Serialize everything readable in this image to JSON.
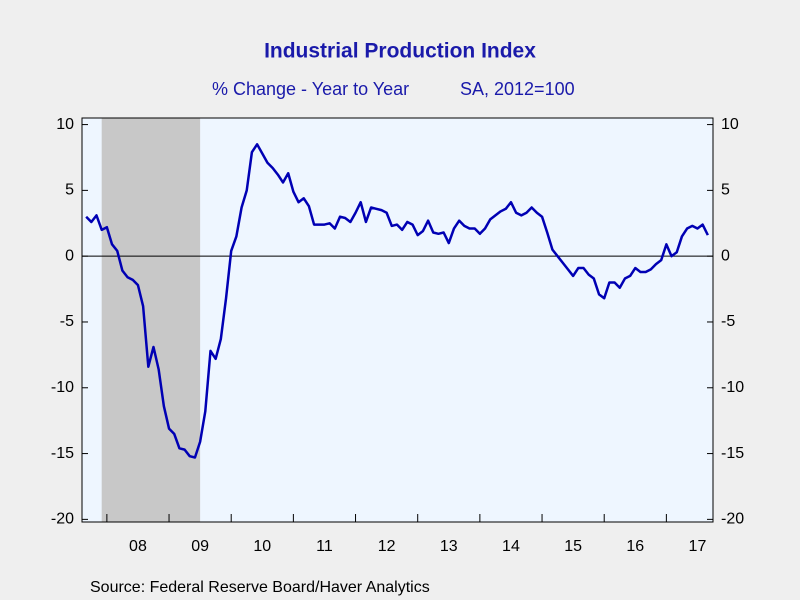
{
  "chart_data": {
    "type": "line",
    "title": "Industrial Production Index",
    "subtitle": "% Change - Year to Year",
    "subtitle_right": "SA, 2012=100",
    "source": "Source:  Federal Reserve Board/Haver Analytics",
    "x": [
      2007.667,
      2007.75,
      2007.833,
      2007.917,
      2008,
      2008.083,
      2008.167,
      2008.25,
      2008.333,
      2008.417,
      2008.5,
      2008.583,
      2008.667,
      2008.75,
      2008.833,
      2008.917,
      2009,
      2009.083,
      2009.167,
      2009.25,
      2009.333,
      2009.417,
      2009.5,
      2009.583,
      2009.667,
      2009.75,
      2009.833,
      2009.917,
      2010,
      2010.083,
      2010.167,
      2010.25,
      2010.333,
      2010.417,
      2010.5,
      2010.583,
      2010.667,
      2010.75,
      2010.833,
      2010.917,
      2011,
      2011.083,
      2011.167,
      2011.25,
      2011.333,
      2011.417,
      2011.5,
      2011.583,
      2011.667,
      2011.75,
      2011.833,
      2011.917,
      2012,
      2012.083,
      2012.167,
      2012.25,
      2012.333,
      2012.417,
      2012.5,
      2012.583,
      2012.667,
      2012.75,
      2012.833,
      2012.917,
      2013,
      2013.083,
      2013.167,
      2013.25,
      2013.333,
      2013.417,
      2013.5,
      2013.583,
      2013.667,
      2013.75,
      2013.833,
      2013.917,
      2014,
      2014.083,
      2014.167,
      2014.25,
      2014.333,
      2014.417,
      2014.5,
      2014.583,
      2014.667,
      2014.75,
      2014.833,
      2014.917,
      2015,
      2015.083,
      2015.167,
      2015.25,
      2015.333,
      2015.417,
      2015.5,
      2015.583,
      2015.667,
      2015.75,
      2015.833,
      2015.917,
      2016,
      2016.083,
      2016.167,
      2016.25,
      2016.333,
      2016.417,
      2016.5,
      2016.583,
      2016.667,
      2016.75,
      2016.833,
      2016.917,
      2017,
      2017.083,
      2017.167,
      2017.25,
      2017.333,
      2017.417,
      2017.5,
      2017.583,
      2017.667
    ],
    "series": [
      {
        "color": "#0000b4",
        "values": [
          3.0,
          2.6,
          3.1,
          2.0,
          2.2,
          0.9,
          0.4,
          -1.1,
          -1.6,
          -1.8,
          -2.2,
          -3.8,
          -8.4,
          -6.9,
          -8.6,
          -11.4,
          -13.1,
          -13.5,
          -14.6,
          -14.7,
          -15.2,
          -15.3,
          -14.1,
          -11.8,
          -7.2,
          -7.8,
          -6.3,
          -3.2,
          0.4,
          1.5,
          3.7,
          5.0,
          7.9,
          8.5,
          7.8,
          7.1,
          6.7,
          6.2,
          5.6,
          6.3,
          4.9,
          4.1,
          4.4,
          3.8,
          2.4,
          2.4,
          2.4,
          2.5,
          2.1,
          3.0,
          2.9,
          2.6,
          3.3,
          4.1,
          2.6,
          3.7,
          3.6,
          3.5,
          3.3,
          2.3,
          2.4,
          2.0,
          2.6,
          2.4,
          1.6,
          1.9,
          2.7,
          1.8,
          1.7,
          1.8,
          1.0,
          2.1,
          2.7,
          2.3,
          2.1,
          2.1,
          1.7,
          2.1,
          2.8,
          3.1,
          3.4,
          3.6,
          4.1,
          3.3,
          3.1,
          3.3,
          3.7,
          3.3,
          3.0,
          1.8,
          0.5,
          0.0,
          -0.5,
          -1.0,
          -1.5,
          -0.9,
          -0.9,
          -1.4,
          -1.7,
          -2.9,
          -3.2,
          -2.0,
          -2.0,
          -2.4,
          -1.7,
          -1.5,
          -0.9,
          -1.2,
          -1.2,
          -1.0,
          -0.6,
          -0.3,
          0.9,
          0.0,
          0.3,
          1.5,
          2.1,
          2.3,
          2.1,
          2.4,
          1.6
        ]
      }
    ],
    "recession": [
      2007.917,
      2009.5
    ],
    "recession_color": "#c8c8c8",
    "xlim": [
      2007.6,
      2017.75
    ],
    "xticks": [
      {
        "value": 2008,
        "label": "08"
      },
      {
        "value": 2009,
        "label": "09"
      },
      {
        "value": 2010,
        "label": "10"
      },
      {
        "value": 2011,
        "label": "11"
      },
      {
        "value": 2012,
        "label": "12"
      },
      {
        "value": 2013,
        "label": "13"
      },
      {
        "value": 2014,
        "label": "14"
      },
      {
        "value": 2015,
        "label": "15"
      },
      {
        "value": 2016,
        "label": "16"
      },
      {
        "value": 2017,
        "label": "17"
      }
    ],
    "ylim": [
      -20.2,
      10.5
    ],
    "yticks": [
      -20,
      -15,
      -10,
      -5,
      0,
      5,
      10
    ],
    "y2lim": [
      -20.2,
      10.5
    ],
    "y2ticks": [
      -20,
      -15,
      -10,
      -5,
      0,
      5,
      10
    ],
    "zero_line": true
  }
}
